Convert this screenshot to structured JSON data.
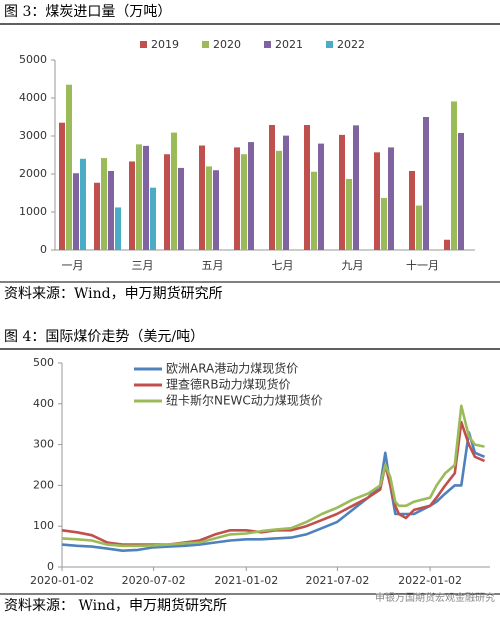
{
  "chart_data": [
    {
      "type": "bar",
      "title": "图 3：煤炭进口量（万吨）",
      "source": "资料来源：Wind，申万期货研究所",
      "categories": [
        "一月",
        null,
        "三月",
        null,
        "五月",
        null,
        "七月",
        null,
        "九月",
        null,
        "十一月",
        null
      ],
      "series": [
        {
          "name": "2019",
          "color": "#c0504d",
          "values": [
            3350,
            1770,
            2330,
            2520,
            2750,
            2700,
            3290,
            3290,
            3030,
            2570,
            2080,
            270
          ]
        },
        {
          "name": "2020",
          "color": "#9bbb59",
          "values": [
            4350,
            2420,
            2780,
            3090,
            2200,
            2520,
            2610,
            2060,
            1870,
            1370,
            1170,
            3910
          ]
        },
        {
          "name": "2021",
          "color": "#8064a2",
          "values": [
            2020,
            2080,
            2740,
            2160,
            2100,
            2840,
            3010,
            2800,
            3280,
            2700,
            3500,
            3080
          ]
        },
        {
          "name": "2022",
          "color": "#4bacc6",
          "values": [
            2400,
            1120,
            1640,
            null,
            null,
            null,
            null,
            null,
            null,
            null,
            null,
            null
          ]
        }
      ],
      "ylim": [
        0,
        5000
      ],
      "yticks": [
        0,
        1000,
        2000,
        3000,
        4000,
        5000
      ],
      "legend": "top",
      "grid": false
    },
    {
      "type": "line",
      "title": "图 4：国际煤价走势（美元/吨）",
      "source": "资料来源： Wind，申万期货研究所",
      "watermark": "申银万国期货宏观金融研究",
      "x": [
        "2020-01-02",
        "2020-02-01",
        "2020-03-01",
        "2020-04-01",
        "2020-05-01",
        "2020-06-01",
        "2020-07-01",
        "2020-08-01",
        "2020-09-01",
        "2020-10-01",
        "2020-11-01",
        "2020-12-01",
        "2021-01-02",
        "2021-02-01",
        "2021-03-01",
        "2021-04-01",
        "2021-05-01",
        "2021-06-01",
        "2021-07-01",
        "2021-08-01",
        "2021-09-01",
        "2021-09-25",
        "2021-10-05",
        "2021-10-15",
        "2021-10-25",
        "2021-11-01",
        "2021-11-15",
        "2021-12-01",
        "2022-01-02",
        "2022-01-15",
        "2022-02-01",
        "2022-02-20",
        "2022-03-05",
        "2022-03-20",
        "2022-04-01",
        "2022-04-20"
      ],
      "series": [
        {
          "name": "欧洲ARA港动力煤现货价",
          "color": "#4f81bd",
          "values": [
            55,
            52,
            50,
            45,
            40,
            42,
            48,
            50,
            52,
            55,
            60,
            65,
            68,
            68,
            70,
            72,
            80,
            95,
            110,
            140,
            170,
            200,
            280,
            200,
            130,
            130,
            130,
            130,
            150,
            160,
            180,
            200,
            200,
            330,
            280,
            270
          ]
        },
        {
          "name": "理查德RB动力煤现货价",
          "color": "#c0504d",
          "values": [
            90,
            85,
            78,
            60,
            55,
            55,
            55,
            55,
            60,
            65,
            80,
            90,
            90,
            85,
            90,
            90,
            100,
            115,
            130,
            150,
            170,
            190,
            250,
            200,
            150,
            130,
            120,
            140,
            150,
            170,
            200,
            230,
            355,
            300,
            270,
            260
          ]
        },
        {
          "name": "纽卡斯尔NEWC动力煤现货价",
          "color": "#9bbb59",
          "values": [
            70,
            68,
            65,
            55,
            52,
            52,
            53,
            55,
            58,
            60,
            70,
            80,
            82,
            88,
            92,
            95,
            110,
            130,
            145,
            165,
            180,
            200,
            250,
            220,
            160,
            150,
            150,
            160,
            170,
            200,
            230,
            250,
            395,
            320,
            300,
            295
          ]
        }
      ],
      "xlim": [
        "2020-01-02",
        "2022-05-01"
      ],
      "xticks": [
        "2020-01-02",
        "2020-07-02",
        "2021-01-02",
        "2021-07-02",
        "2022-01-02"
      ],
      "ylim": [
        0,
        500
      ],
      "yticks": [
        0,
        100,
        200,
        300,
        400,
        500
      ],
      "legend": "upper left",
      "grid": false
    }
  ]
}
